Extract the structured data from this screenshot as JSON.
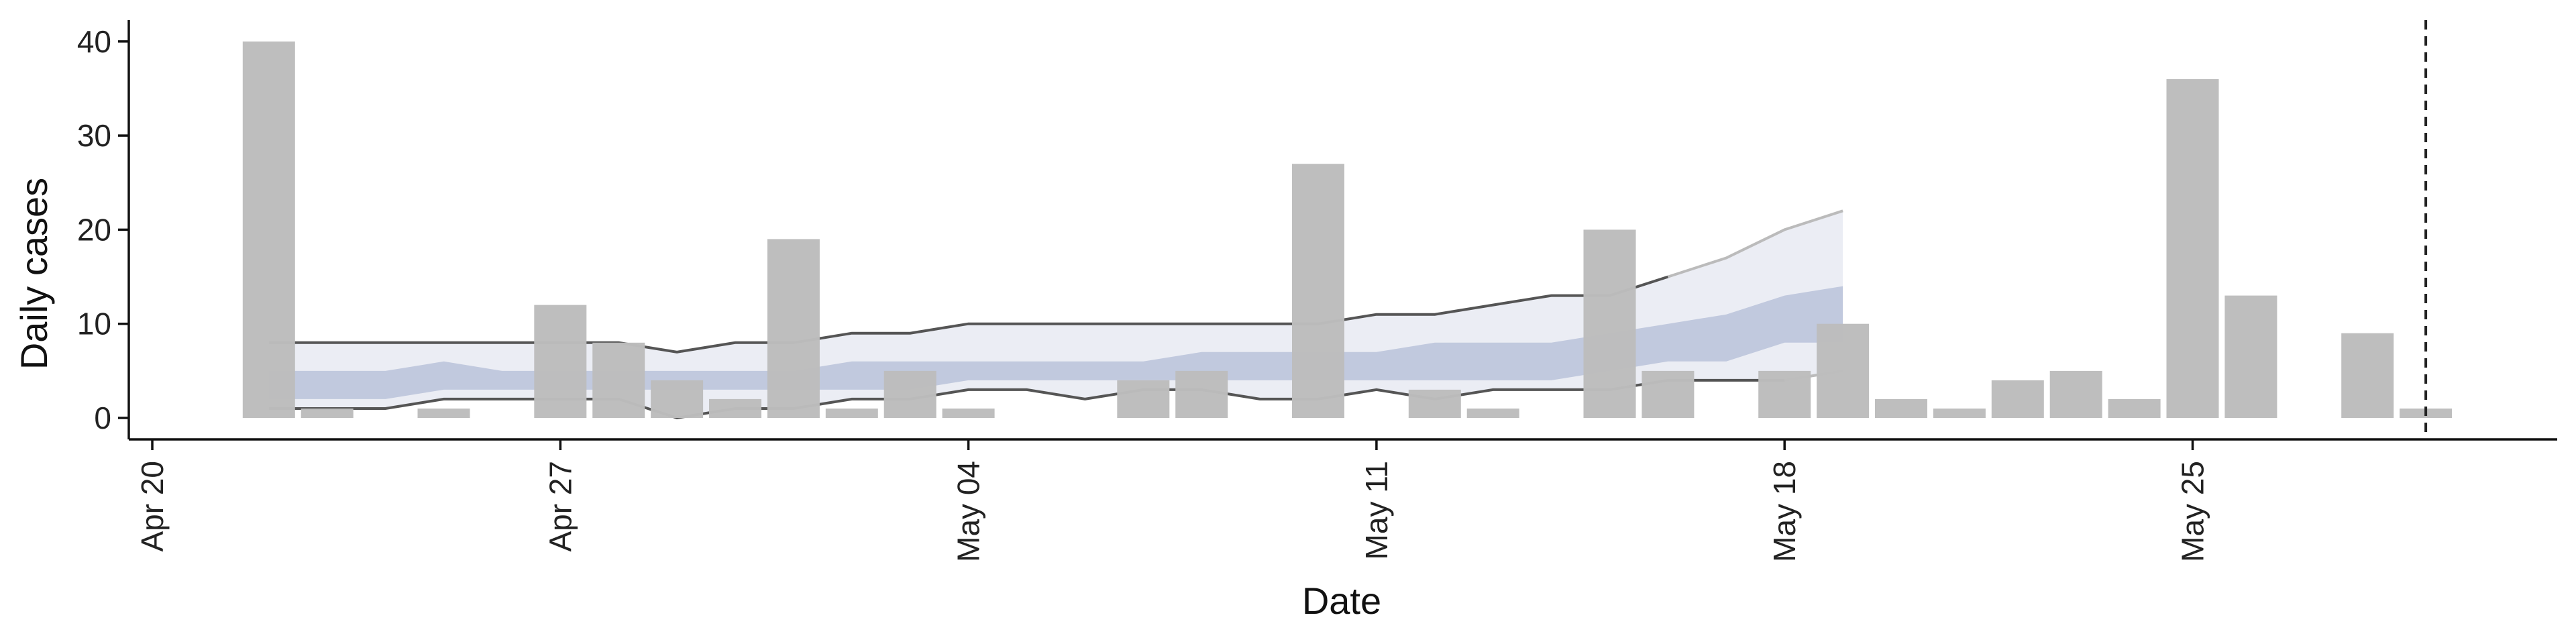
{
  "chart_data": {
    "type": "bar",
    "title": "",
    "xlabel": "Date",
    "ylabel": "Daily cases",
    "x_ticks": [
      "2020-04-20",
      "2020-04-27",
      "2020-05-04",
      "2020-05-11",
      "2020-05-18",
      "2020-05-25"
    ],
    "x_tick_labels": [
      "Apr 20",
      "Apr 27",
      "May 04",
      "May 11",
      "May 18",
      "May 25"
    ],
    "y_ticks": [
      0,
      10,
      20,
      30,
      40
    ],
    "xlim": [
      "2020-04-20",
      "2020-05-31"
    ],
    "ylim": [
      -2,
      42
    ],
    "grid": false,
    "colors": {
      "bars": "#bdbdbd",
      "band_outer": "#dde1ec",
      "band_inner": "#8e9ec4",
      "line_dark": "#555555",
      "line_light": "#bbbbbb",
      "vline": "#222222"
    },
    "bars": {
      "dates": [
        "2020-04-22",
        "2020-04-23",
        "2020-04-25",
        "2020-04-27",
        "2020-04-28",
        "2020-04-29",
        "2020-04-30",
        "2020-05-01",
        "2020-05-02",
        "2020-05-03",
        "2020-05-04",
        "2020-05-07",
        "2020-05-08",
        "2020-05-10",
        "2020-05-12",
        "2020-05-13",
        "2020-05-15",
        "2020-05-16",
        "2020-05-18",
        "2020-05-19",
        "2020-05-20",
        "2020-05-21",
        "2020-05-22",
        "2020-05-23",
        "2020-05-24",
        "2020-05-25",
        "2020-05-26",
        "2020-05-28",
        "2020-05-29"
      ],
      "values": [
        40,
        1,
        1,
        12,
        8,
        4,
        2,
        19,
        1,
        5,
        1,
        4,
        5,
        27,
        3,
        1,
        20,
        5,
        5,
        10,
        2,
        1,
        4,
        5,
        2,
        36,
        13,
        9,
        1
      ]
    },
    "bands": {
      "dates": [
        "2020-04-22",
        "2020-04-23",
        "2020-04-24",
        "2020-04-25",
        "2020-04-26",
        "2020-04-27",
        "2020-04-28",
        "2020-04-29",
        "2020-04-30",
        "2020-05-01",
        "2020-05-02",
        "2020-05-03",
        "2020-05-04",
        "2020-05-05",
        "2020-05-06",
        "2020-05-07",
        "2020-05-08",
        "2020-05-09",
        "2020-05-10",
        "2020-05-11",
        "2020-05-12",
        "2020-05-13",
        "2020-05-14",
        "2020-05-15",
        "2020-05-16",
        "2020-05-17",
        "2020-05-18",
        "2020-05-19"
      ],
      "outer_upper": [
        8,
        8,
        8,
        8,
        8,
        8,
        8,
        7,
        8,
        8,
        9,
        9,
        10,
        10,
        10,
        10,
        10,
        10,
        10,
        11,
        11,
        12,
        13,
        13,
        15,
        17,
        20,
        22
      ],
      "outer_lower": [
        1,
        1,
        1,
        2,
        2,
        2,
        2,
        0,
        1,
        1,
        2,
        2,
        3,
        3,
        2,
        3,
        3,
        2,
        2,
        3,
        2,
        3,
        3,
        3,
        4,
        4,
        4,
        5
      ],
      "inner_upper": [
        5,
        5,
        5,
        6,
        5,
        5,
        5,
        5,
        5,
        5,
        6,
        6,
        6,
        6,
        6,
        6,
        7,
        7,
        7,
        7,
        8,
        8,
        8,
        9,
        10,
        11,
        13,
        14
      ],
      "inner_lower": [
        2,
        2,
        2,
        3,
        3,
        3,
        3,
        3,
        3,
        3,
        3,
        3,
        4,
        4,
        4,
        4,
        4,
        4,
        4,
        4,
        4,
        4,
        4,
        5,
        6,
        6,
        8,
        8
      ],
      "line_upper_dark_until": "2020-05-16",
      "line_lower_dark_until": "2020-05-18"
    },
    "vline_date": "2020-05-29"
  }
}
